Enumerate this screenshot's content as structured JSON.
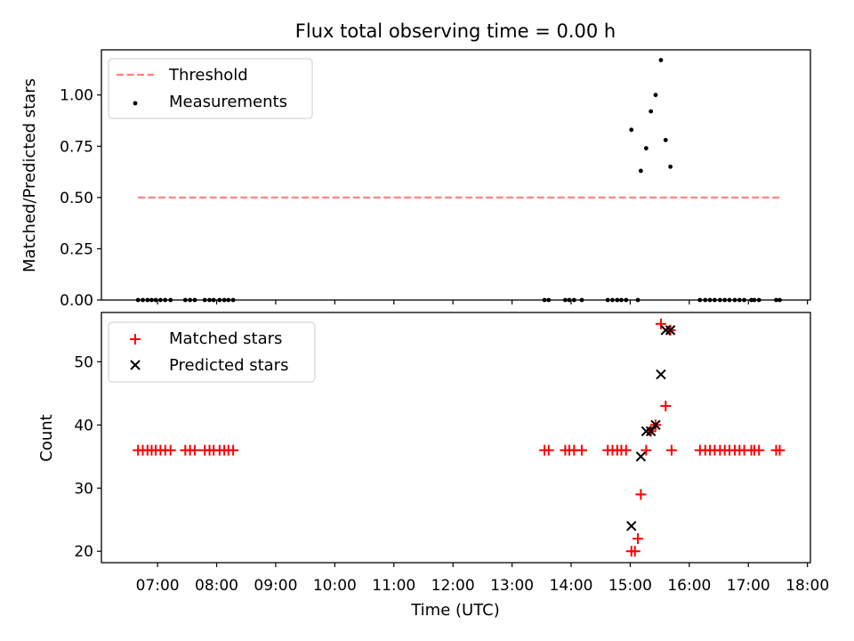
{
  "figure": {
    "title": "Flux total observing time = 0.00 h",
    "xlabel": "Time (UTC)",
    "x_ticks": [
      "07:00",
      "08:00",
      "09:00",
      "10:00",
      "11:00",
      "12:00",
      "13:00",
      "14:00",
      "15:00",
      "16:00",
      "17:00",
      "18:00"
    ]
  },
  "chart_data": [
    {
      "type": "scatter",
      "panel": "top",
      "title": "Flux total observing time = 0.00 h",
      "xlabel": "Time (UTC)",
      "ylabel": "Matched/Predicted stars",
      "x_unit": "hours UTC",
      "xlim": [
        6.05,
        18.05
      ],
      "ylim": [
        0.0,
        1.22
      ],
      "y_ticks": [
        0.0,
        0.25,
        0.5,
        0.75,
        1.0
      ],
      "y_tick_labels": [
        "0.00",
        "0.25",
        "0.50",
        "0.75",
        "1.00"
      ],
      "legend": "upper left",
      "grid": false,
      "series": [
        {
          "name": "Threshold",
          "kind": "line",
          "style": "dashed",
          "color": "#ff7f7f",
          "x": [
            6.67,
            17.53
          ],
          "y": [
            0.5,
            0.5
          ]
        },
        {
          "name": "Measurements",
          "kind": "scatter",
          "color": "#000000",
          "x": [
            6.67,
            6.75,
            6.83,
            6.9,
            6.97,
            7.05,
            7.13,
            7.22,
            7.47,
            7.55,
            7.63,
            7.8,
            7.88,
            7.95,
            8.05,
            8.13,
            8.2,
            8.28,
            13.55,
            13.62,
            13.9,
            13.97,
            14.05,
            14.18,
            14.62,
            14.7,
            14.78,
            14.85,
            14.93,
            15.13,
            15.02,
            15.18,
            15.27,
            15.35,
            15.43,
            15.52,
            15.6,
            15.68
          ],
          "y": [
            0,
            0,
            0,
            0,
            0,
            0,
            0,
            0,
            0,
            0,
            0,
            0,
            0,
            0,
            0,
            0,
            0,
            0,
            0,
            0,
            0,
            0,
            0,
            0,
            0,
            0,
            0,
            0,
            0,
            0,
            0.83,
            0.63,
            0.74,
            0.92,
            1.0,
            1.17,
            0.78,
            0.65
          ]
        },
        {
          "name": "",
          "kind": "scatter",
          "color": "#000000",
          "x": [
            16.18,
            16.27,
            16.35,
            16.43,
            16.52,
            16.6,
            16.68,
            16.77,
            16.85,
            16.93,
            17.05,
            17.1,
            17.18,
            17.47,
            17.53
          ],
          "y": [
            0,
            0,
            0,
            0,
            0,
            0,
            0,
            0,
            0,
            0,
            0,
            0,
            0,
            0,
            0
          ]
        }
      ]
    },
    {
      "type": "scatter",
      "panel": "bottom",
      "xlabel": "Time (UTC)",
      "ylabel": "Count",
      "x_unit": "hours UTC",
      "xlim": [
        6.05,
        18.05
      ],
      "ylim": [
        18.2,
        57.8
      ],
      "y_ticks": [
        20,
        30,
        40,
        50
      ],
      "y_tick_labels": [
        "20",
        "30",
        "40",
        "50"
      ],
      "legend": "upper left",
      "grid": false,
      "series": [
        {
          "name": "Matched stars",
          "marker": "+",
          "color": "#ff0000",
          "x": [
            6.67,
            6.75,
            6.83,
            6.9,
            6.97,
            7.05,
            7.13,
            7.22,
            7.47,
            7.55,
            7.63,
            7.8,
            7.88,
            7.95,
            8.05,
            8.13,
            8.2,
            8.28,
            13.55,
            13.62,
            13.9,
            13.97,
            14.05,
            14.18,
            14.62,
            14.7,
            14.78,
            14.85,
            14.93,
            15.02,
            15.08,
            15.13,
            15.18,
            15.27,
            15.35,
            15.43,
            15.52,
            15.6,
            15.68,
            15.7,
            16.18,
            16.27,
            16.35,
            16.43,
            16.52,
            16.6,
            16.68,
            16.77,
            16.85,
            16.93,
            17.05,
            17.1,
            17.18,
            17.47,
            17.53
          ],
          "y": [
            36,
            36,
            36,
            36,
            36,
            36,
            36,
            36,
            36,
            36,
            36,
            36,
            36,
            36,
            36,
            36,
            36,
            36,
            36,
            36,
            36,
            36,
            36,
            36,
            36,
            36,
            36,
            36,
            36,
            20,
            20,
            22,
            29,
            36,
            39,
            40,
            56,
            43,
            55,
            36,
            36,
            36,
            36,
            36,
            36,
            36,
            36,
            36,
            36,
            36,
            36,
            36,
            36,
            36,
            36
          ]
        },
        {
          "name": "Predicted stars",
          "marker": "x",
          "color": "#000000",
          "x": [
            15.02,
            15.18,
            15.27,
            15.35,
            15.43,
            15.52,
            15.6,
            15.68
          ],
          "y": [
            24,
            35,
            39,
            39,
            40,
            48,
            55,
            55
          ]
        }
      ]
    }
  ]
}
